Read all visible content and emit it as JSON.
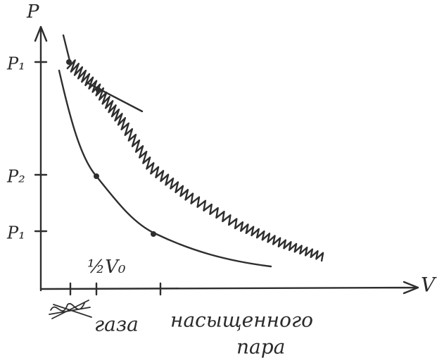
{
  "axes": {
    "y_label": "P",
    "x_label": "V"
  },
  "y_ticks": [
    "P₁",
    "P₂",
    "P₁"
  ],
  "x_tick": "½V₀",
  "curve_labels": [
    "газа",
    "насыщенного",
    "пара"
  ]
}
